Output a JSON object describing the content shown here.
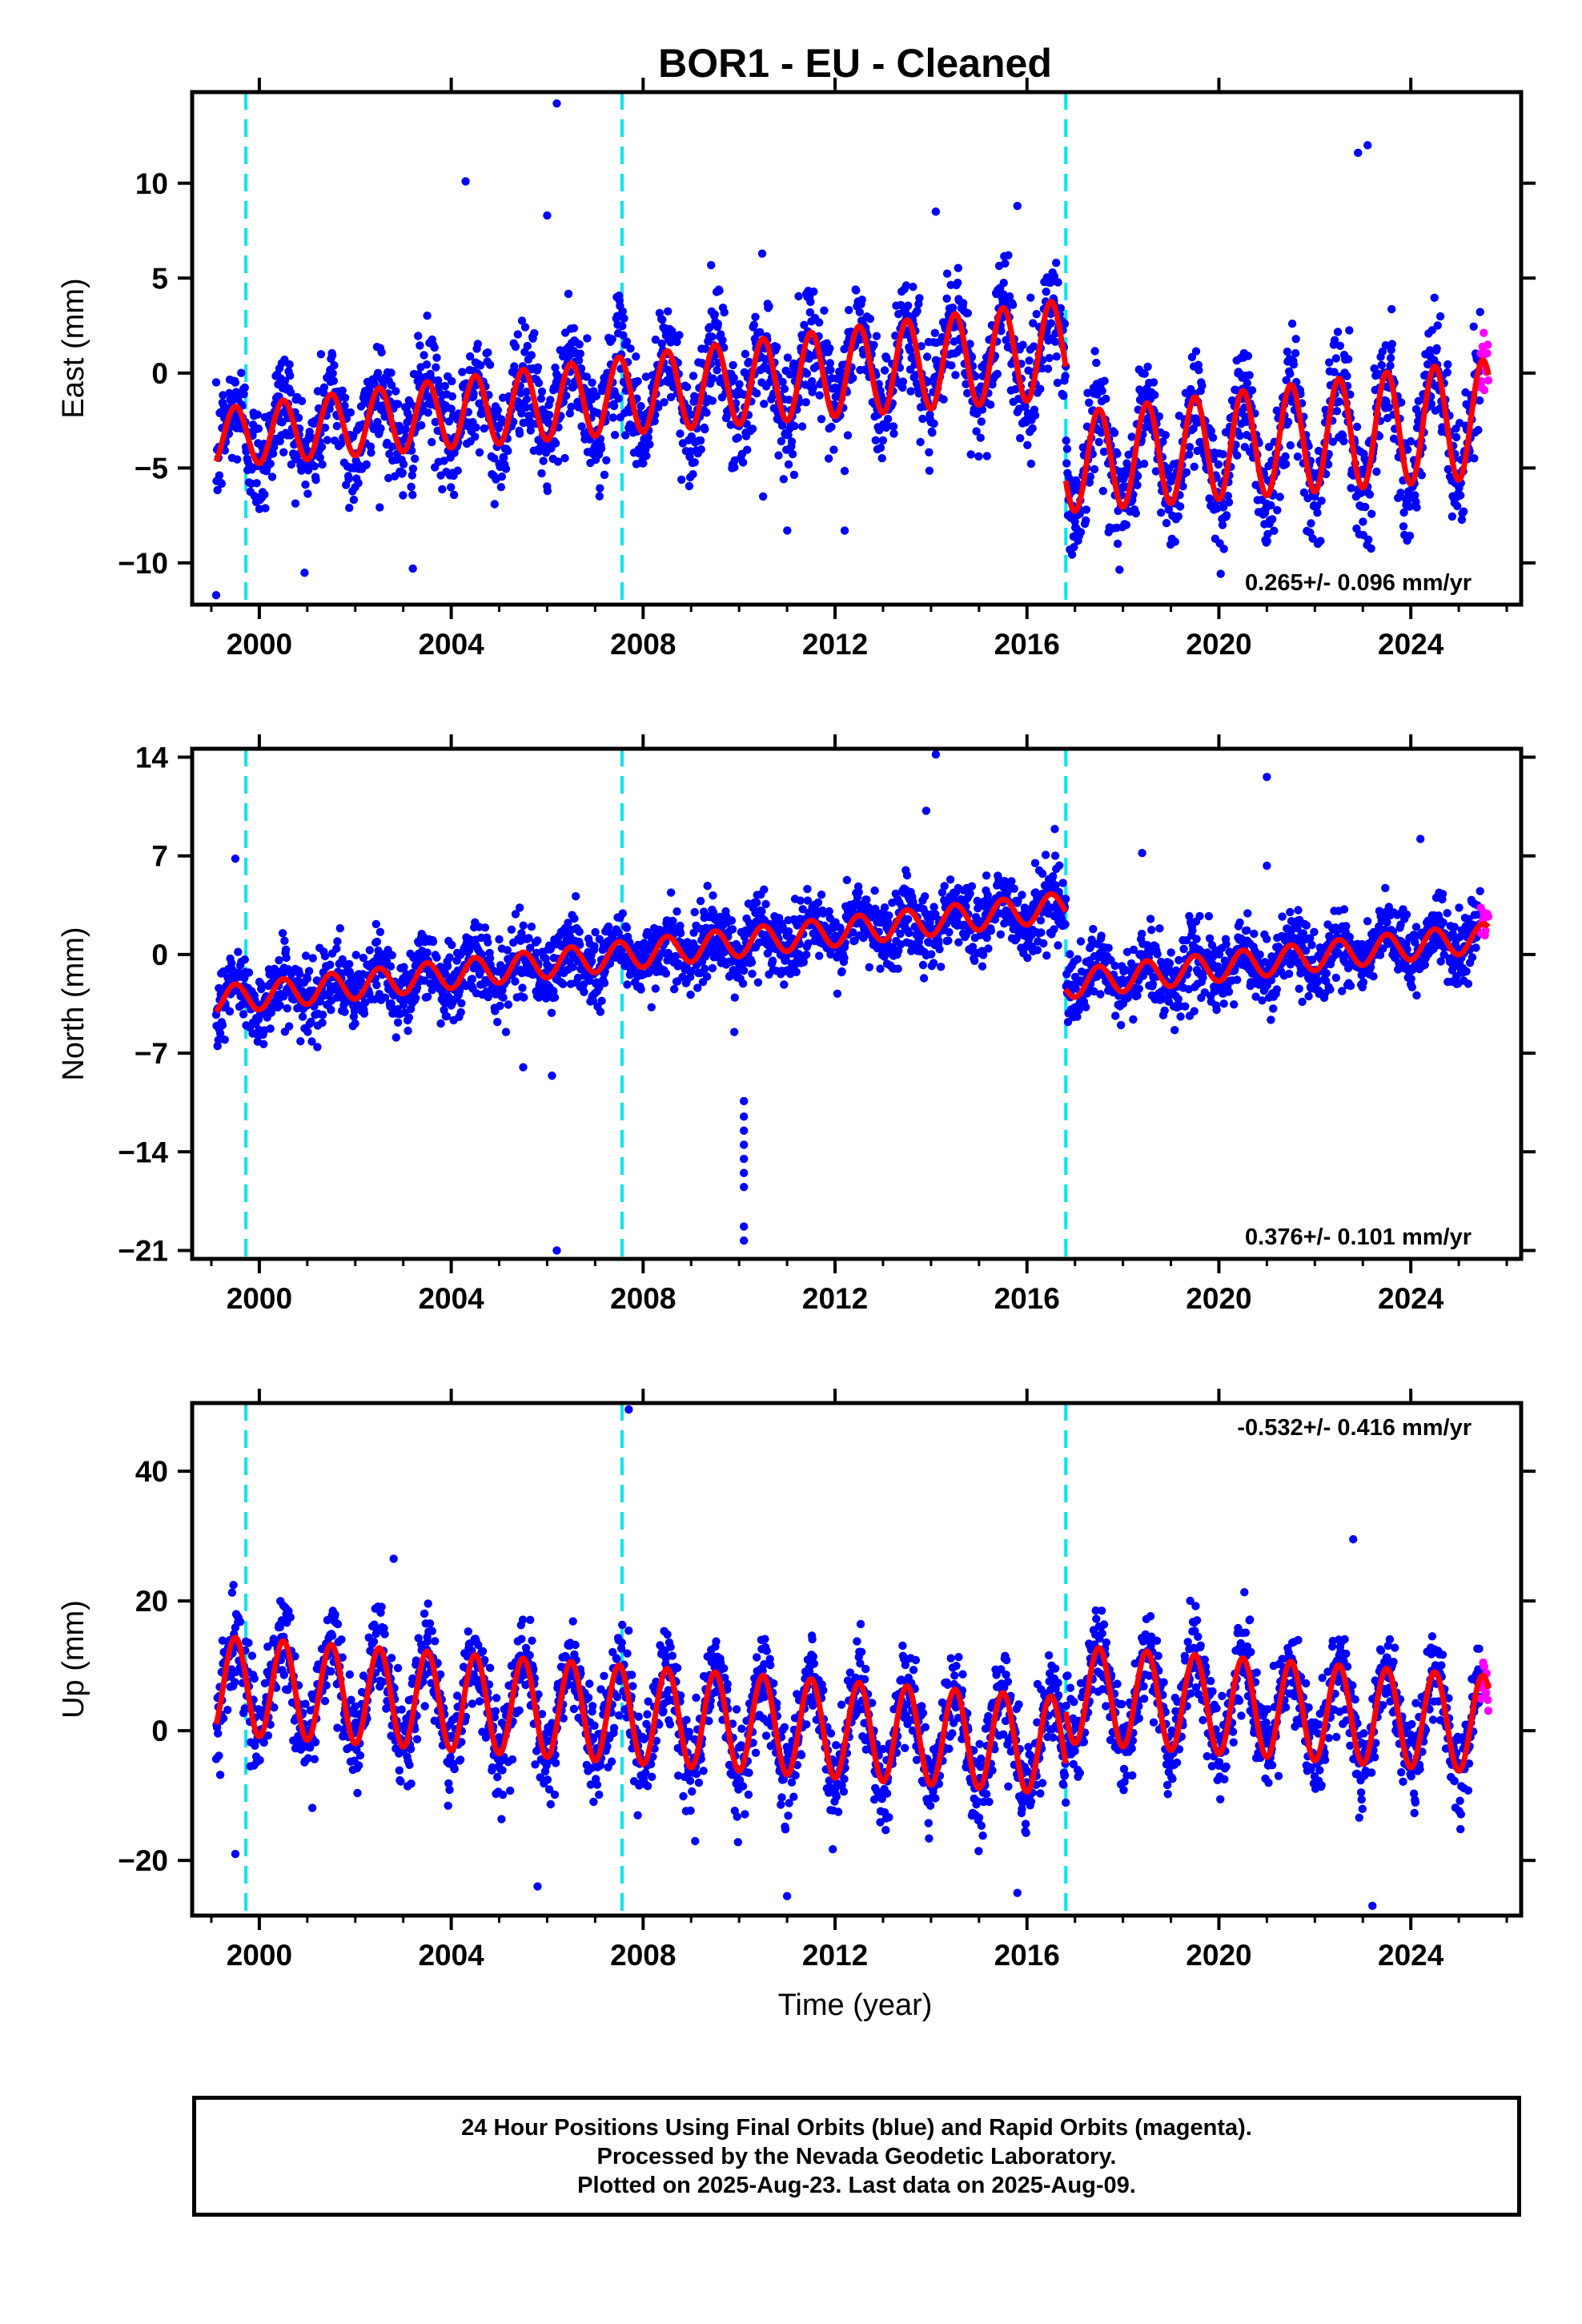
{
  "title": "BOR1  - EU - Cleaned",
  "colors": {
    "final_points": "#0000ff",
    "rapid_points": "#ff00ff",
    "model": "#ff0000",
    "breaks": "#00e5ee",
    "frame": "#000000"
  },
  "chart_data": [
    {
      "type": "scatter",
      "component": "east",
      "ylabel": "East (mm)",
      "ylim": [
        -12.2,
        14.8
      ],
      "yticks": [
        -10,
        -5,
        0,
        5,
        10
      ],
      "ytick_labels": [
        "−10",
        "−5",
        "0",
        "5",
        "10"
      ],
      "xlim": [
        1998.6,
        2026.3
      ],
      "xticks": [
        2000,
        2004,
        2008,
        2012,
        2016,
        2020,
        2024
      ],
      "break_epochs": [
        1999.72,
        2007.56,
        2016.81
      ],
      "rate_text": "0.265+/- 0.096 mm/yr",
      "rate_position": "bottom-right",
      "model": {
        "rate": 0.265,
        "offset_at_2012": 0.0,
        "annual_amplitude_base": 2.3,
        "annual_amplitude_slope": 0.06,
        "scatter": 1.5,
        "steps": [
          {
            "t": 1999.72,
            "dy": 0.0
          },
          {
            "t": 2016.81,
            "dy": -6.0
          }
        ]
      },
      "outliers": [
        {
          "x": 2006.2,
          "y": 14.2
        },
        {
          "x": 2004.3,
          "y": 10.1
        },
        {
          "x": 2006.0,
          "y": 8.3
        },
        {
          "x": 2023.1,
          "y": 12.0
        },
        {
          "x": 2022.9,
          "y": 11.6
        },
        {
          "x": 2014.1,
          "y": 8.5
        },
        {
          "x": 2012.2,
          "y": -8.3
        },
        {
          "x": 2010.5,
          "y": -6.5
        },
        {
          "x": 1999.1,
          "y": -11.7
        },
        {
          "x": 2003.2,
          "y": -10.3
        },
        {
          "x": 2015.8,
          "y": 8.8
        }
      ]
    },
    {
      "type": "scatter",
      "component": "north",
      "ylabel": "North (mm)",
      "ylim": [
        -21.6,
        14.6
      ],
      "yticks": [
        -21,
        -14,
        -7,
        0,
        7,
        14
      ],
      "ytick_labels": [
        "−21",
        "−14",
        "−7",
        "0",
        "7",
        "14"
      ],
      "xlim": [
        1998.6,
        2026.3
      ],
      "xticks": [
        2000,
        2004,
        2008,
        2012,
        2016,
        2020,
        2024
      ],
      "break_epochs": [
        1999.72,
        2007.56,
        2016.81
      ],
      "rate_text": "0.376+/- 0.101 mm/yr",
      "rate_position": "bottom-right",
      "model": {
        "rate": 0.376,
        "offset_at_2012": 1.6,
        "annual_amplitude_base": 1.0,
        "annual_amplitude_slope": 0.0,
        "scatter": 1.3,
        "steps": [
          {
            "t": 2016.81,
            "dy": -5.5
          }
        ]
      },
      "outliers": [
        {
          "x": 2014.1,
          "y": 14.2
        },
        {
          "x": 2013.9,
          "y": 10.2
        },
        {
          "x": 2021.0,
          "y": 12.6
        },
        {
          "x": 2006.2,
          "y": -21.0
        },
        {
          "x": 2010.1,
          "y": -19.3
        },
        {
          "x": 2010.1,
          "y": -20.3
        },
        {
          "x": 2010.1,
          "y": -10.4
        },
        {
          "x": 2010.1,
          "y": -11.5
        },
        {
          "x": 2010.1,
          "y": -12.5
        },
        {
          "x": 2010.1,
          "y": -13.5
        },
        {
          "x": 2010.1,
          "y": -14.5
        },
        {
          "x": 2010.1,
          "y": -15.5
        },
        {
          "x": 2010.1,
          "y": -16.5
        },
        {
          "x": 2009.9,
          "y": -5.5
        },
        {
          "x": 2006.1,
          "y": -8.6
        },
        {
          "x": 2005.5,
          "y": -8.0
        },
        {
          "x": 1999.5,
          "y": 6.8
        },
        {
          "x": 2018.4,
          "y": 7.2
        },
        {
          "x": 2024.2,
          "y": 8.2
        },
        {
          "x": 2021.0,
          "y": 6.3
        }
      ]
    },
    {
      "type": "scatter",
      "component": "up",
      "ylabel": "Up (mm)",
      "xlabel": "Time (year)",
      "ylim": [
        -28.5,
        50.5
      ],
      "yticks": [
        -20,
        0,
        20,
        40
      ],
      "ytick_labels": [
        "−20",
        "0",
        "20",
        "40"
      ],
      "xlim": [
        1998.6,
        2026.3
      ],
      "xticks": [
        2000,
        2004,
        2008,
        2012,
        2016,
        2020,
        2024
      ],
      "break_epochs": [
        1999.72,
        2007.56,
        2016.81
      ],
      "rate_text": "-0.532+/- 0.416 mm/yr",
      "rate_position": "top-right",
      "model": {
        "rate": -0.532,
        "offset_at_2012": 0.2,
        "annual_amplitude_base": 7.5,
        "annual_amplitude_slope": 0.0,
        "scatter": 3.5,
        "steps": [
          {
            "t": 2016.81,
            "dy": 8.0
          }
        ]
      },
      "outliers": [
        {
          "x": 2007.7,
          "y": 49.5
        },
        {
          "x": 2022.8,
          "y": 29.5
        },
        {
          "x": 2002.8,
          "y": 26.5
        },
        {
          "x": 2023.2,
          "y": -27.0
        },
        {
          "x": 2011.0,
          "y": -25.5
        },
        {
          "x": 2005.8,
          "y": -24.0
        },
        {
          "x": 1999.5,
          "y": -19.0
        },
        {
          "x": 2015.8,
          "y": -25.0
        }
      ]
    }
  ],
  "ticks": {
    "x_labels": [
      "2000",
      "2004",
      "2008",
      "2012",
      "2016",
      "2020",
      "2024"
    ]
  },
  "footer": {
    "line1": "24 Hour Positions Using Final Orbits (blue) and Rapid Orbits (magenta).",
    "line2": "Processed by the Nevada Geodetic Laboratory.",
    "line3": "Plotted on 2025-Aug-23. Last data on 2025-Aug-09."
  }
}
